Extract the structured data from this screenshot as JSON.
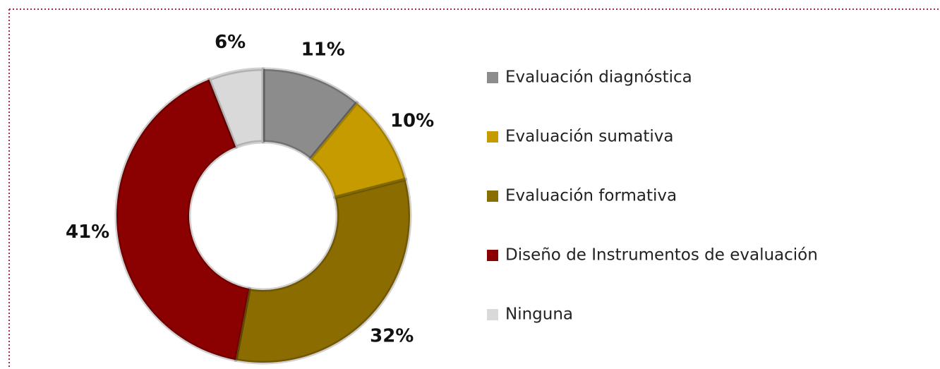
{
  "chart_data": {
    "type": "pie",
    "categories": [
      "Evaluación diagnóstica",
      "Evaluación sumativa",
      "Evaluación formativa",
      "Diseño de Instrumentos de evaluación",
      "Ninguna"
    ],
    "values": [
      11,
      10,
      32,
      41,
      6
    ],
    "value_labels": [
      "11%",
      "10%",
      "32%",
      "41%",
      "6%"
    ],
    "colors": [
      "#8c8c8c",
      "#c59b00",
      "#8a6c00",
      "#8b0000",
      "#d9d9d9"
    ],
    "donut": true,
    "legend": "right"
  }
}
